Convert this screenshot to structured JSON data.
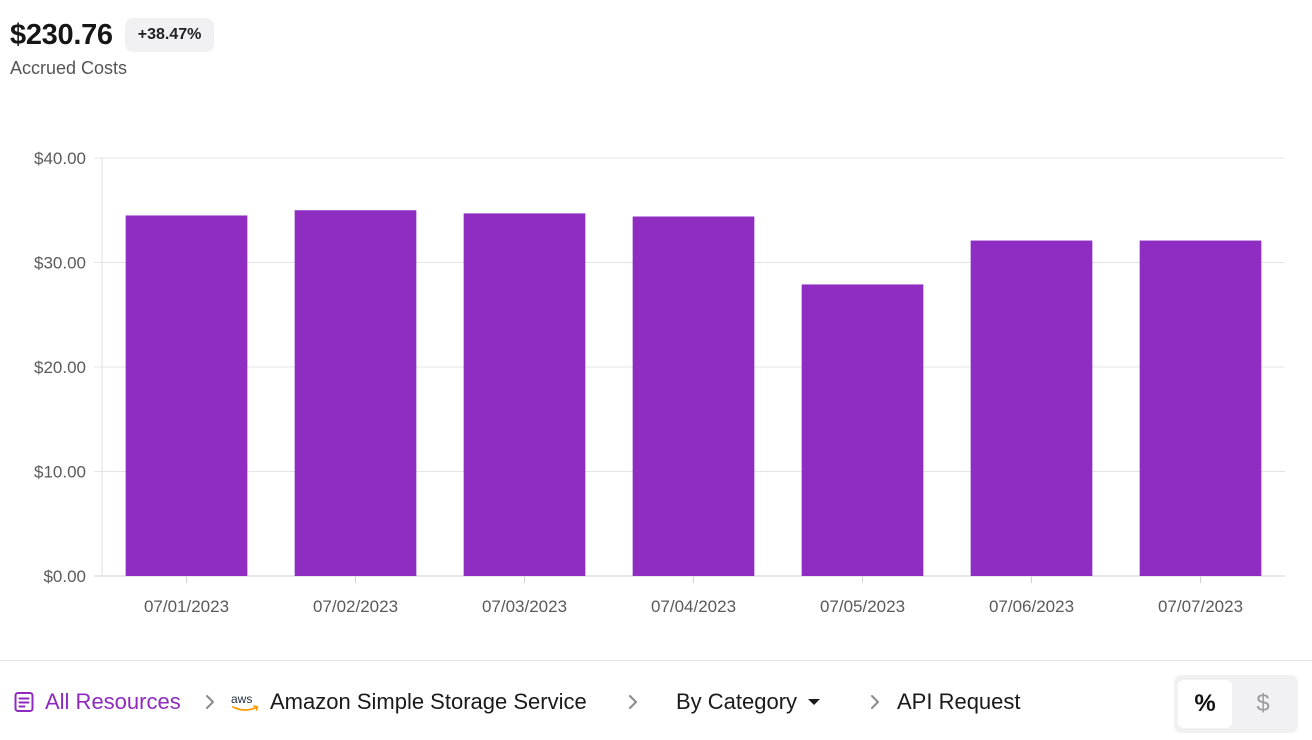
{
  "summary": {
    "total": "$230.76",
    "change": "+38.47%",
    "label": "Accrued Costs"
  },
  "chart_data": {
    "type": "bar",
    "categories": [
      "07/01/2023",
      "07/02/2023",
      "07/03/2023",
      "07/04/2023",
      "07/05/2023",
      "07/06/2023",
      "07/07/2023"
    ],
    "values": [
      34.5,
      35.0,
      34.7,
      34.4,
      27.9,
      32.1,
      32.1
    ],
    "yticks": [
      "$0.00",
      "$10.00",
      "$20.00",
      "$30.00",
      "$40.00"
    ],
    "ylim": [
      0,
      40
    ],
    "grid": true,
    "bar_color": "#8f2cc2"
  },
  "breadcrumb": {
    "all_resources": "All Resources",
    "service": "Amazon Simple Storage Service",
    "service_icon": "aws-icon",
    "group_by": "By Category",
    "category": "API Request"
  },
  "view_toggle": {
    "percent": "%",
    "dollar": "$",
    "active": "percent"
  },
  "colors": {
    "accent": "#8e2ac0"
  }
}
